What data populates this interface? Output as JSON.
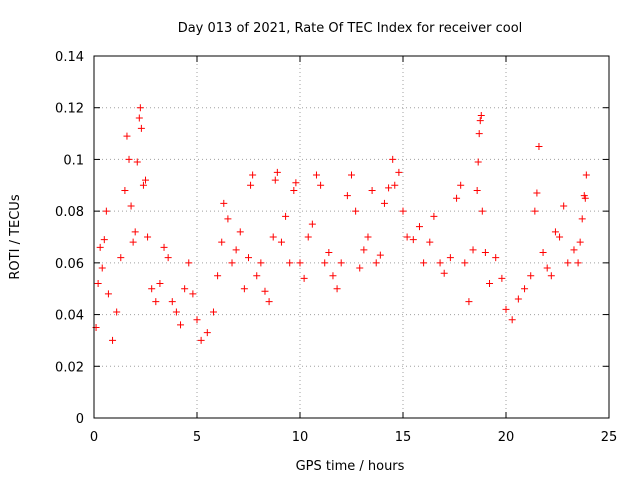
{
  "chart_data": {
    "type": "scatter",
    "title": "Day 013 of 2021, Rate Of TEC Index for receiver cool",
    "xlabel": "GPS time / hours",
    "ylabel": "ROTI / TECUs",
    "xlim": [
      0,
      25
    ],
    "ylim": [
      0,
      0.14
    ],
    "xticks": [
      0,
      5,
      10,
      15,
      20,
      25
    ],
    "xtick_labels": [
      "0",
      "5",
      "10",
      "15",
      "20",
      "25"
    ],
    "yticks": [
      0,
      0.02,
      0.04,
      0.06,
      0.08,
      0.1,
      0.12,
      0.14
    ],
    "ytick_labels": [
      "0",
      "0.02",
      "0.04",
      "0.06",
      "0.08",
      "0.1",
      "0.12",
      "0.14"
    ],
    "grid": true,
    "marker": "+",
    "color": "#ff0000",
    "series": [
      {
        "name": "ROTI",
        "points": [
          [
            0.1,
            0.035
          ],
          [
            0.2,
            0.052
          ],
          [
            0.3,
            0.066
          ],
          [
            0.4,
            0.058
          ],
          [
            0.5,
            0.069
          ],
          [
            0.6,
            0.08
          ],
          [
            0.7,
            0.048
          ],
          [
            0.9,
            0.03
          ],
          [
            1.1,
            0.041
          ],
          [
            1.3,
            0.062
          ],
          [
            1.5,
            0.088
          ],
          [
            1.6,
            0.109
          ],
          [
            1.7,
            0.1
          ],
          [
            1.8,
            0.082
          ],
          [
            1.9,
            0.068
          ],
          [
            2.0,
            0.072
          ],
          [
            2.1,
            0.099
          ],
          [
            2.2,
            0.116
          ],
          [
            2.25,
            0.12
          ],
          [
            2.3,
            0.112
          ],
          [
            2.4,
            0.09
          ],
          [
            2.5,
            0.092
          ],
          [
            2.6,
            0.07
          ],
          [
            2.8,
            0.05
          ],
          [
            3.0,
            0.045
          ],
          [
            3.2,
            0.052
          ],
          [
            3.4,
            0.066
          ],
          [
            3.6,
            0.062
          ],
          [
            3.8,
            0.045
          ],
          [
            4.0,
            0.041
          ],
          [
            4.2,
            0.036
          ],
          [
            4.4,
            0.05
          ],
          [
            4.6,
            0.06
          ],
          [
            4.8,
            0.048
          ],
          [
            5.0,
            0.038
          ],
          [
            5.2,
            0.03
          ],
          [
            5.5,
            0.033
          ],
          [
            5.8,
            0.041
          ],
          [
            6.0,
            0.055
          ],
          [
            6.2,
            0.068
          ],
          [
            6.3,
            0.083
          ],
          [
            6.5,
            0.077
          ],
          [
            6.7,
            0.06
          ],
          [
            6.9,
            0.065
          ],
          [
            7.1,
            0.072
          ],
          [
            7.3,
            0.05
          ],
          [
            7.5,
            0.062
          ],
          [
            7.6,
            0.09
          ],
          [
            7.7,
            0.094
          ],
          [
            7.9,
            0.055
          ],
          [
            8.1,
            0.06
          ],
          [
            8.3,
            0.049
          ],
          [
            8.5,
            0.045
          ],
          [
            8.7,
            0.07
          ],
          [
            8.8,
            0.092
          ],
          [
            8.9,
            0.095
          ],
          [
            9.1,
            0.068
          ],
          [
            9.3,
            0.078
          ],
          [
            9.5,
            0.06
          ],
          [
            9.7,
            0.088
          ],
          [
            9.8,
            0.091
          ],
          [
            10.0,
            0.06
          ],
          [
            10.2,
            0.054
          ],
          [
            10.4,
            0.07
          ],
          [
            10.6,
            0.075
          ],
          [
            10.8,
            0.094
          ],
          [
            11.0,
            0.09
          ],
          [
            11.2,
            0.06
          ],
          [
            11.4,
            0.064
          ],
          [
            11.6,
            0.055
          ],
          [
            11.8,
            0.05
          ],
          [
            12.0,
            0.06
          ],
          [
            12.3,
            0.086
          ],
          [
            12.5,
            0.094
          ],
          [
            12.7,
            0.08
          ],
          [
            12.9,
            0.058
          ],
          [
            13.1,
            0.065
          ],
          [
            13.3,
            0.07
          ],
          [
            13.5,
            0.088
          ],
          [
            13.7,
            0.06
          ],
          [
            13.9,
            0.063
          ],
          [
            14.1,
            0.083
          ],
          [
            14.3,
            0.089
          ],
          [
            14.5,
            0.1
          ],
          [
            14.6,
            0.09
          ],
          [
            14.8,
            0.095
          ],
          [
            15.0,
            0.08
          ],
          [
            15.2,
            0.07
          ],
          [
            15.5,
            0.069
          ],
          [
            15.8,
            0.074
          ],
          [
            16.0,
            0.06
          ],
          [
            16.3,
            0.068
          ],
          [
            16.5,
            0.078
          ],
          [
            16.8,
            0.06
          ],
          [
            17.0,
            0.056
          ],
          [
            17.3,
            0.062
          ],
          [
            17.6,
            0.085
          ],
          [
            17.8,
            0.09
          ],
          [
            18.0,
            0.06
          ],
          [
            18.2,
            0.045
          ],
          [
            18.4,
            0.065
          ],
          [
            18.6,
            0.088
          ],
          [
            18.65,
            0.099
          ],
          [
            18.7,
            0.11
          ],
          [
            18.75,
            0.115
          ],
          [
            18.8,
            0.117
          ],
          [
            18.85,
            0.08
          ],
          [
            19.0,
            0.064
          ],
          [
            19.2,
            0.052
          ],
          [
            19.5,
            0.062
          ],
          [
            19.8,
            0.054
          ],
          [
            20.0,
            0.042
          ],
          [
            20.3,
            0.038
          ],
          [
            20.6,
            0.046
          ],
          [
            20.9,
            0.05
          ],
          [
            21.2,
            0.055
          ],
          [
            21.4,
            0.08
          ],
          [
            21.5,
            0.087
          ],
          [
            21.6,
            0.105
          ],
          [
            21.8,
            0.064
          ],
          [
            22.0,
            0.058
          ],
          [
            22.2,
            0.055
          ],
          [
            22.4,
            0.072
          ],
          [
            22.6,
            0.07
          ],
          [
            22.8,
            0.082
          ],
          [
            23.0,
            0.06
          ],
          [
            23.3,
            0.065
          ],
          [
            23.5,
            0.06
          ],
          [
            23.6,
            0.068
          ],
          [
            23.7,
            0.077
          ],
          [
            23.8,
            0.086
          ],
          [
            23.85,
            0.085
          ],
          [
            23.9,
            0.094
          ]
        ]
      }
    ]
  }
}
